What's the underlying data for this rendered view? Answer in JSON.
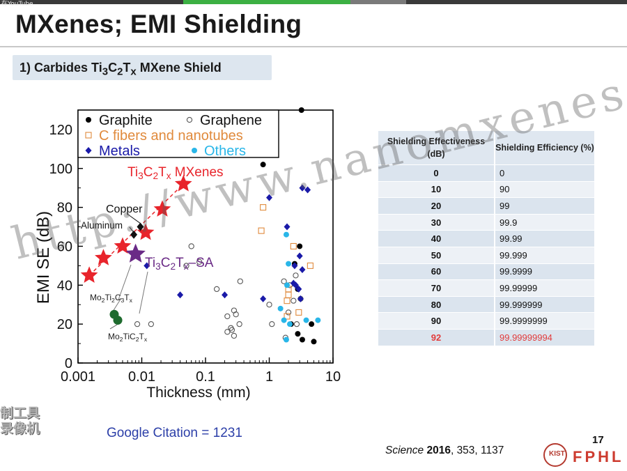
{
  "top_bar": {
    "label": "在YouTube"
  },
  "slide": {
    "title": "MXenes; EMI Shielding",
    "subtitle": "1) Carbides Ti<sub>3</sub>C<sub>2</sub>T<sub>x</sub> MXene Shield",
    "citation": "Google Citation = 1231",
    "reference_journal": "Science",
    "reference_year": "2016",
    "reference_rest": ", 353, 1137",
    "page_number": "17",
    "logo_text": "KIST",
    "brand": "FPHL",
    "watermark": "http://www.nanomxenes.com",
    "overlay_lines": [
      "制工具",
      "录像机"
    ]
  },
  "colors": {
    "graphite": "#000000",
    "graphene": "#555555",
    "fibers": "#e08a3c",
    "metals": "#1a1aa8",
    "others": "#29b6e8",
    "mxene": "#e8242b",
    "sa": "#6a2a86",
    "mo": "#1e6b2e",
    "table_highlight": "#e23b3b"
  },
  "table": {
    "headers": [
      "Shielding Effectiveness (dB)",
      "Shielding Efficiency (%)"
    ],
    "rows": [
      [
        "0",
        "0"
      ],
      [
        "10",
        "90"
      ],
      [
        "20",
        "99"
      ],
      [
        "30",
        "99.9"
      ],
      [
        "40",
        "99.99"
      ],
      [
        "50",
        "99.999"
      ],
      [
        "60",
        "99.9999"
      ],
      [
        "70",
        "99.99999"
      ],
      [
        "80",
        "99.999999"
      ],
      [
        "90",
        "99.9999999"
      ],
      [
        "92",
        "99.99999994"
      ]
    ],
    "highlight_row": 10
  },
  "chart_data": {
    "type": "scatter",
    "xscale": "log",
    "xlim": [
      0.001,
      10
    ],
    "ylim": [
      0,
      130
    ],
    "xticks": [
      "0.001",
      "0.01",
      "0.1",
      "1",
      "10"
    ],
    "yticks": [
      "0",
      "20",
      "40",
      "60",
      "80",
      "100",
      "120"
    ],
    "xlabel": "Thickness (mm)",
    "ylabel": "EMI SE (dB)",
    "legend": [
      "Graphite",
      "Graphene",
      "C fibers and nanotubes",
      "Metals",
      "Others"
    ],
    "legend_position": "top-left",
    "series": [
      {
        "name": "Graphite",
        "marker": "filled-circle",
        "points": [
          [
            3.2,
            130
          ],
          [
            0.8,
            102
          ],
          [
            3.0,
            60
          ],
          [
            2.5,
            51
          ],
          [
            2.8,
            38
          ],
          [
            3.3,
            12
          ],
          [
            5.0,
            11
          ],
          [
            4.6,
            20
          ],
          [
            2.8,
            15
          ],
          [
            2.2,
            20
          ]
        ]
      },
      {
        "name": "Graphene",
        "marker": "open-circle",
        "points": [
          [
            0.06,
            60
          ],
          [
            0.05,
            50
          ],
          [
            0.08,
            52
          ],
          [
            0.15,
            38
          ],
          [
            0.35,
            42
          ],
          [
            0.3,
            25
          ],
          [
            0.28,
            27
          ],
          [
            0.22,
            24
          ],
          [
            0.34,
            20
          ],
          [
            0.26,
            17
          ],
          [
            0.28,
            14
          ],
          [
            0.25,
            18
          ],
          [
            0.22,
            16
          ],
          [
            1.0,
            30
          ],
          [
            1.1,
            20
          ],
          [
            1.7,
            42
          ],
          [
            2.1,
            40
          ],
          [
            2.6,
            45
          ],
          [
            2.4,
            32
          ],
          [
            3.1,
            33
          ],
          [
            2.0,
            26
          ],
          [
            2.7,
            20
          ],
          [
            1.8,
            13
          ],
          [
            0.014,
            20
          ],
          [
            0.0085,
            20
          ]
        ]
      },
      {
        "name": "C fibers and nanotubes",
        "marker": "open-square",
        "points": [
          [
            0.8,
            80
          ],
          [
            0.75,
            68
          ],
          [
            2.4,
            60
          ],
          [
            4.4,
            50
          ],
          [
            2.0,
            35
          ],
          [
            2.0,
            38
          ],
          [
            2.9,
            26
          ],
          [
            1.9,
            32
          ],
          [
            1.9,
            24
          ]
        ]
      },
      {
        "name": "Metals",
        "marker": "diamond",
        "points": [
          [
            3.3,
            90
          ],
          [
            4.0,
            89
          ],
          [
            1.0,
            85
          ],
          [
            1.9,
            70
          ],
          [
            3.0,
            55
          ],
          [
            2.5,
            50
          ],
          [
            3.3,
            48
          ],
          [
            2.6,
            40
          ],
          [
            2.9,
            38
          ],
          [
            3.1,
            33
          ],
          [
            2.4,
            41
          ],
          [
            0.04,
            35
          ],
          [
            0.2,
            35
          ],
          [
            0.8,
            33
          ],
          [
            0.012,
            50
          ]
        ]
      },
      {
        "name": "Others",
        "marker": "filled-circle",
        "points": [
          [
            1.85,
            66
          ],
          [
            2.0,
            51
          ],
          [
            1.9,
            40
          ],
          [
            1.5,
            28
          ],
          [
            1.7,
            22
          ],
          [
            1.85,
            12
          ],
          [
            3.8,
            22
          ],
          [
            5.8,
            22
          ],
          [
            2.1,
            20
          ]
        ]
      }
    ],
    "mxene_points": [
      [
        0.0015,
        45
      ],
      [
        0.0025,
        54
      ],
      [
        0.005,
        60
      ],
      [
        0.0115,
        67
      ],
      [
        0.021,
        79
      ],
      [
        0.045,
        92
      ]
    ],
    "mxene_label": "Ti<sub>3</sub>C<sub>2</sub>T<sub>x</sub> MXenes",
    "sa_point": [
      0.008,
      56
    ],
    "sa_label": "Ti<sub>3</sub>C<sub>2</sub>T<sub>x</sub>–SA",
    "mo_points": [
      [
        0.0037,
        25
      ],
      [
        0.0042,
        22
      ]
    ],
    "mo_labels": [
      "Mo<sub>2</sub>Ti<sub>2</sub>C<sub>3</sub>T<sub>x</sub>",
      "Mo<sub>2</sub>TiC<sub>2</sub>T<sub>x</sub>"
    ],
    "copper_point": [
      0.0095,
      70
    ],
    "aluminum_point": [
      0.0075,
      66
    ],
    "copper_label": "Copper",
    "aluminum_label": "Aluminum"
  }
}
